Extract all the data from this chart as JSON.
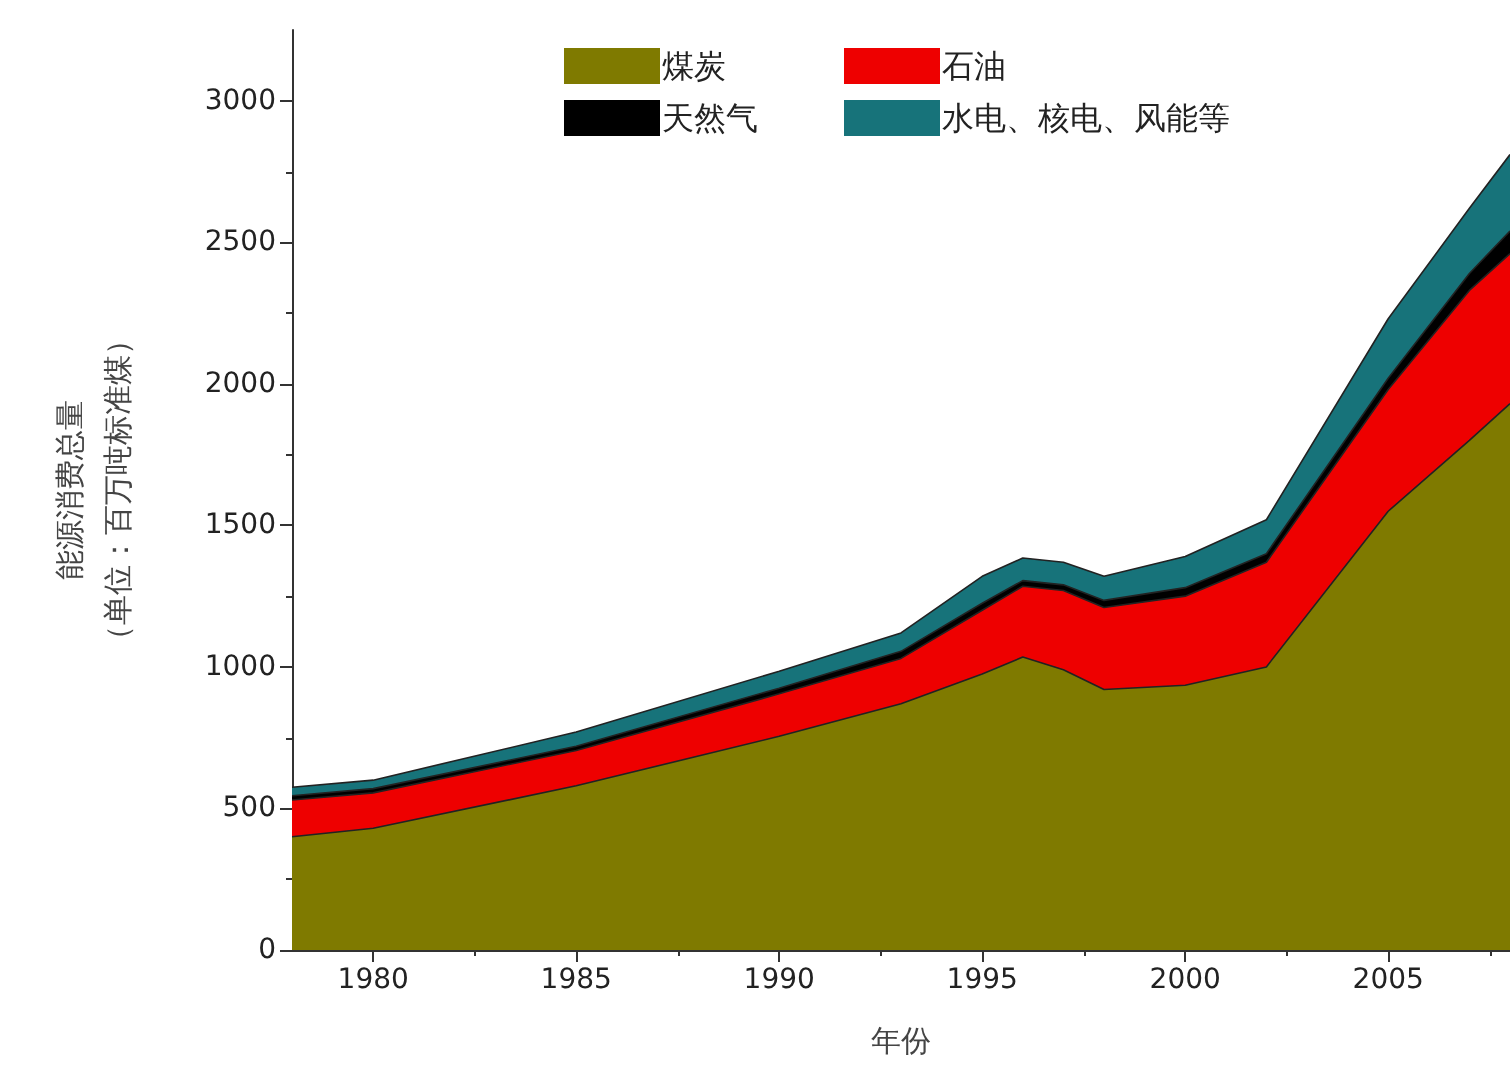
{
  "chart_data": {
    "type": "area",
    "stacked": true,
    "xlabel": "年份",
    "ylabel": "能源消费总量（单位：百万吨标准煤）",
    "x": [
      1978,
      1980,
      1985,
      1990,
      1993,
      1995,
      1996,
      1997,
      1998,
      2000,
      2002,
      2005,
      2007,
      2008
    ],
    "xlim": [
      1978,
      2008
    ],
    "xticks": [
      1980,
      1985,
      1990,
      1995,
      2000,
      2005
    ],
    "ylim": [
      0,
      3250
    ],
    "yticks": [
      0,
      500,
      1000,
      1500,
      2000,
      2500,
      3000
    ],
    "grid": false,
    "legend": "top right",
    "series": [
      {
        "name": "煤炭",
        "color": "#7f7a00",
        "values": [
          400,
          430,
          580,
          755,
          870,
          975,
          1035,
          990,
          920,
          935,
          1000,
          1550,
          1800,
          1930
        ]
      },
      {
        "name": "石油",
        "color": "#ee0000",
        "values": [
          130,
          125,
          125,
          150,
          160,
          225,
          250,
          280,
          290,
          315,
          370,
          430,
          530,
          530
        ]
      },
      {
        "name": "天然气",
        "color": "#000000",
        "values": [
          15,
          15,
          15,
          20,
          25,
          25,
          20,
          20,
          25,
          30,
          30,
          40,
          60,
          80
        ]
      },
      {
        "name": "水电、核电、风能等",
        "color": "#17737a",
        "values": [
          30,
          30,
          50,
          60,
          65,
          95,
          80,
          80,
          85,
          110,
          120,
          210,
          230,
          270
        ]
      }
    ]
  }
}
